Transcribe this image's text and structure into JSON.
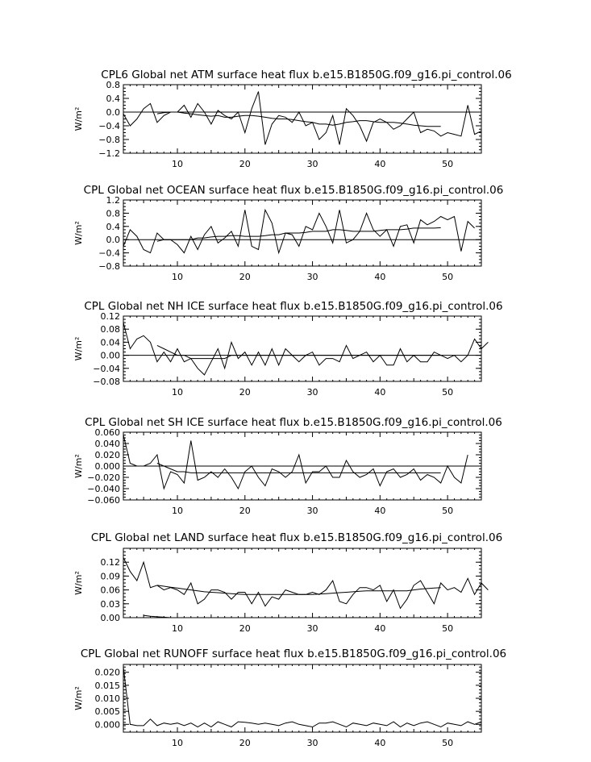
{
  "chart_data": [
    {
      "type": "line",
      "title": "CPL6 Global net ATM surface heat flux b.e15.B1850G.f09_g16.pi_control.06",
      "ylabel": "W/m²",
      "xlim": [
        2,
        55
      ],
      "ylim": [
        -1.2,
        0.8
      ],
      "xticks": [
        10,
        20,
        30,
        40,
        50
      ],
      "yticks": [
        -1.2,
        -0.8,
        -0.4,
        0.0,
        0.4,
        0.8
      ],
      "ytick_labels": [
        "−1.2",
        "−0.8",
        "−0.4",
        "0.0",
        "0.4",
        "0.8"
      ],
      "zero_line": true,
      "series": [
        {
          "x_start": 2,
          "values": [
            -0.05,
            -0.4,
            -0.2,
            0.1,
            0.25,
            -0.3,
            -0.1,
            0.0,
            0.0,
            0.2,
            -0.15,
            0.25,
            0.0,
            -0.35,
            0.05,
            -0.1,
            -0.2,
            0.0,
            -0.6,
            0.1,
            0.6,
            -0.95,
            -0.35,
            -0.1,
            -0.15,
            -0.3,
            0.0,
            -0.4,
            -0.3,
            -0.8,
            -0.6,
            -0.1,
            -0.95,
            0.1,
            -0.1,
            -0.4,
            -0.85,
            -0.3,
            -0.2,
            -0.3,
            -0.5,
            -0.4,
            -0.2,
            0.0,
            -0.6,
            -0.5,
            -0.55,
            -0.7,
            -0.6,
            -0.65,
            -0.7,
            0.2,
            -0.65,
            -0.55
          ]
        },
        {
          "x_start": 7,
          "values": [
            -0.05,
            -0.02,
            0.0,
            0.0,
            -0.03,
            -0.05,
            -0.08,
            -0.1,
            -0.12,
            -0.1,
            -0.15,
            -0.15,
            -0.12,
            -0.1,
            -0.1,
            -0.12,
            -0.15,
            -0.18,
            -0.2,
            -0.2,
            -0.22,
            -0.25,
            -0.28,
            -0.3,
            -0.35,
            -0.35,
            -0.38,
            -0.35,
            -0.3,
            -0.28,
            -0.25,
            -0.25,
            -0.28,
            -0.3,
            -0.3,
            -0.3,
            -0.32,
            -0.35,
            -0.38,
            -0.4,
            -0.42,
            -0.42,
            -0.42
          ]
        }
      ]
    },
    {
      "type": "line",
      "title": "CPL Global net OCEAN surface heat flux b.e15.B1850G.f09_g16.pi_control.06",
      "ylabel": "W/m²",
      "xlim": [
        2,
        55
      ],
      "ylim": [
        -0.8,
        1.2
      ],
      "xticks": [
        10,
        20,
        30,
        40,
        50
      ],
      "yticks": [
        -0.8,
        -0.4,
        0.0,
        0.4,
        0.8,
        1.2
      ],
      "ytick_labels": [
        "−0.8",
        "−0.4",
        "0.0",
        "0.4",
        "0.8",
        "1.2"
      ],
      "zero_line": true,
      "series": [
        {
          "x_start": 2,
          "values": [
            -0.2,
            0.3,
            0.1,
            -0.3,
            -0.4,
            0.2,
            0.0,
            0.0,
            -0.15,
            -0.4,
            0.1,
            -0.3,
            0.15,
            0.4,
            -0.1,
            0.05,
            0.25,
            -0.2,
            0.9,
            -0.2,
            -0.3,
            0.9,
            0.5,
            -0.4,
            0.2,
            0.15,
            -0.2,
            0.4,
            0.3,
            0.8,
            0.4,
            -0.1,
            0.9,
            -0.1,
            0.0,
            0.25,
            0.8,
            0.3,
            0.1,
            0.3,
            -0.2,
            0.4,
            0.45,
            -0.1,
            0.6,
            0.45,
            0.55,
            0.7,
            0.6,
            0.7,
            -0.35,
            0.55,
            0.35
          ]
        },
        {
          "x_start": 7,
          "values": [
            -0.05,
            0.0,
            0.0,
            0.0,
            0.0,
            0.0,
            0.05,
            0.05,
            0.08,
            0.1,
            0.1,
            0.12,
            0.12,
            0.1,
            0.1,
            0.1,
            0.12,
            0.15,
            0.15,
            0.2,
            0.2,
            0.2,
            0.22,
            0.25,
            0.25,
            0.25,
            0.3,
            0.3,
            0.28,
            0.25,
            0.25,
            0.25,
            0.25,
            0.28,
            0.3,
            0.3,
            0.3,
            0.32,
            0.35,
            0.35,
            0.35,
            0.35,
            0.36
          ]
        }
      ]
    },
    {
      "type": "line",
      "title": "CPL Global net NH ICE surface heat flux b.e15.B1850G.f09_g16.pi_control.06",
      "ylabel": "W/m²",
      "xlim": [
        2,
        55
      ],
      "ylim": [
        -0.08,
        0.12
      ],
      "xticks": [
        10,
        20,
        30,
        40,
        50
      ],
      "yticks": [
        -0.08,
        -0.04,
        0.0,
        0.04,
        0.08,
        0.12
      ],
      "ytick_labels": [
        "−0.08",
        "−0.04",
        "0.00",
        "0.04",
        "0.08",
        "0.12"
      ],
      "zero_line": true,
      "series": [
        {
          "x_start": 2,
          "values": [
            0.1,
            0.02,
            0.05,
            0.06,
            0.04,
            -0.02,
            0.01,
            -0.02,
            0.02,
            -0.02,
            -0.01,
            -0.04,
            -0.06,
            -0.02,
            0.02,
            -0.04,
            0.04,
            -0.01,
            0.01,
            -0.03,
            0.01,
            -0.03,
            0.02,
            -0.03,
            0.02,
            0.0,
            -0.02,
            0.0,
            0.01,
            -0.03,
            -0.01,
            -0.01,
            -0.02,
            0.03,
            -0.01,
            0.0,
            0.01,
            -0.02,
            0.0,
            -0.03,
            -0.03,
            0.02,
            -0.02,
            0.0,
            -0.02,
            -0.02,
            0.01,
            0.0,
            -0.01,
            0.0,
            -0.02,
            0.0,
            0.05,
            0.02,
            0.04
          ]
        },
        {
          "x_start": 7,
          "values": [
            0.03,
            0.02,
            0.01,
            0.0,
            0.0,
            -0.01,
            -0.01,
            -0.01,
            -0.01,
            -0.01,
            -0.01,
            0.0,
            0.0,
            0.0,
            0.0,
            0.0,
            0.0,
            0.0,
            0.0,
            0.0,
            0.0,
            0.0,
            0.0,
            0.0,
            0.0,
            0.0,
            0.0,
            0.0,
            0.0,
            0.0,
            0.0,
            0.0,
            0.0,
            0.0,
            0.0,
            0.0,
            0.0,
            0.0,
            0.0,
            0.0,
            0.0,
            0.0,
            0.0
          ]
        }
      ]
    },
    {
      "type": "line",
      "title": "CPL Global net SH ICE surface heat flux b.e15.B1850G.f09_g16.pi_control.06",
      "ylabel": "W/m²",
      "xlim": [
        2,
        55
      ],
      "ylim": [
        -0.06,
        0.06
      ],
      "xticks": [
        10,
        20,
        30,
        40,
        50
      ],
      "yticks": [
        -0.06,
        -0.04,
        -0.02,
        0.0,
        0.02,
        0.04,
        0.06
      ],
      "ytick_labels": [
        "−0.060",
        "−0.040",
        "−0.020",
        "0.000",
        "0.020",
        "0.040",
        "0.060"
      ],
      "zero_line": true,
      "series": [
        {
          "x_start": 2,
          "values": [
            0.055,
            0.005,
            0.0,
            0.0,
            0.005,
            0.02,
            -0.04,
            -0.01,
            -0.015,
            -0.03,
            0.045,
            -0.025,
            -0.02,
            -0.01,
            -0.02,
            -0.005,
            -0.02,
            -0.04,
            -0.01,
            0.0,
            -0.02,
            -0.035,
            -0.005,
            -0.01,
            -0.02,
            -0.01,
            0.02,
            -0.03,
            -0.01,
            -0.01,
            0.0,
            -0.02,
            -0.02,
            0.01,
            -0.01,
            -0.02,
            -0.015,
            -0.005,
            -0.035,
            -0.01,
            -0.005,
            -0.02,
            -0.015,
            -0.005,
            -0.025,
            -0.015,
            -0.02,
            -0.03,
            0.0,
            -0.02,
            -0.03,
            0.02
          ]
        },
        {
          "x_start": 7,
          "values": [
            0.005,
            0.0,
            -0.005,
            -0.01,
            -0.01,
            -0.012,
            -0.012,
            -0.012,
            -0.012,
            -0.012,
            -0.012,
            -0.012,
            -0.012,
            -0.012,
            -0.012,
            -0.012,
            -0.012,
            -0.012,
            -0.012,
            -0.012,
            -0.012,
            -0.012,
            -0.012,
            -0.012,
            -0.012,
            -0.012,
            -0.012,
            -0.012,
            -0.012,
            -0.012,
            -0.012,
            -0.012,
            -0.012,
            -0.012,
            -0.012,
            -0.012,
            -0.012,
            -0.012,
            -0.012,
            -0.012,
            -0.012,
            -0.012,
            -0.012
          ]
        }
      ]
    },
    {
      "type": "line",
      "title": "CPL Global net LAND surface heat flux b.e15.B1850G.f09_g16.pi_control.06",
      "ylabel": "W/m²",
      "xlim": [
        2,
        55
      ],
      "ylim": [
        0.0,
        0.15
      ],
      "xticks": [
        10,
        20,
        30,
        40,
        50
      ],
      "yticks": [
        0.0,
        0.03,
        0.06,
        0.09,
        0.12
      ],
      "ytick_labels": [
        "0.00",
        "0.03",
        "0.06",
        "0.09",
        "0.12"
      ],
      "zero_line": true,
      "series": [
        {
          "x_start": 2,
          "values": [
            0.13,
            0.1,
            0.08,
            0.12,
            0.065,
            0.07,
            0.06,
            0.065,
            0.06,
            0.05,
            0.075,
            0.03,
            0.04,
            0.06,
            0.06,
            0.055,
            0.04,
            0.055,
            0.055,
            0.03,
            0.055,
            0.025,
            0.045,
            0.04,
            0.06,
            0.055,
            0.05,
            0.05,
            0.055,
            0.05,
            0.06,
            0.08,
            0.035,
            0.03,
            0.05,
            0.065,
            0.065,
            0.06,
            0.07,
            0.035,
            0.06,
            0.02,
            0.04,
            0.07,
            0.08,
            0.055,
            0.03,
            0.075,
            0.06,
            0.065,
            0.055,
            0.085,
            0.05,
            0.075,
            0.06
          ]
        },
        {
          "x_start": 7,
          "values": [
            0.07,
            0.068,
            0.066,
            0.064,
            0.062,
            0.06,
            0.058,
            0.056,
            0.055,
            0.054,
            0.053,
            0.052,
            0.051,
            0.05,
            0.05,
            0.05,
            0.05,
            0.05,
            0.05,
            0.05,
            0.05,
            0.05,
            0.05,
            0.05,
            0.051,
            0.052,
            0.053,
            0.054,
            0.055,
            0.056,
            0.057,
            0.058,
            0.058,
            0.058,
            0.058,
            0.058,
            0.058,
            0.058,
            0.06,
            0.062,
            0.063,
            0.064,
            0.065
          ]
        },
        {
          "x_start": 5,
          "values": [
            0.005,
            0.003,
            0.002,
            0.001,
            0.0
          ]
        }
      ]
    },
    {
      "type": "line",
      "title": "CPL Global net RUNOFF surface heat flux b.e15.B1850G.f09_g16.pi_control.06",
      "ylabel": "W/m²",
      "xlim": [
        2,
        55
      ],
      "ylim": [
        -0.003,
        0.023
      ],
      "xticks": [
        10,
        20,
        30,
        40,
        50
      ],
      "yticks": [
        0.0,
        0.005,
        0.01,
        0.015,
        0.02
      ],
      "ytick_labels": [
        "0.000",
        "0.005",
        "0.010",
        "0.015",
        "0.020"
      ],
      "zero_line": false,
      "series": [
        {
          "x_start": 2,
          "values": [
            0.022,
            0.0,
            -0.0005,
            -0.0005,
            0.002,
            -0.0005,
            0.0005,
            0.0,
            0.0005,
            -0.0005,
            0.0005,
            -0.001,
            0.0005,
            -0.001,
            0.001,
            0.0,
            -0.001,
            0.001,
            0.0008,
            0.0005,
            0.0,
            0.0005,
            0.0,
            -0.0005,
            0.0005,
            0.001,
            0.0,
            -0.0005,
            -0.001,
            0.0005,
            0.0005,
            0.001,
            0.0,
            -0.001,
            0.0005,
            0.0,
            -0.0005,
            0.0005,
            0.0,
            -0.0005,
            0.001,
            -0.001,
            0.0005,
            -0.0005,
            0.0005,
            0.001,
            0.0,
            -0.001,
            0.0005,
            0.0,
            -0.0005,
            0.001,
            0.0,
            0.001
          ]
        }
      ]
    }
  ]
}
